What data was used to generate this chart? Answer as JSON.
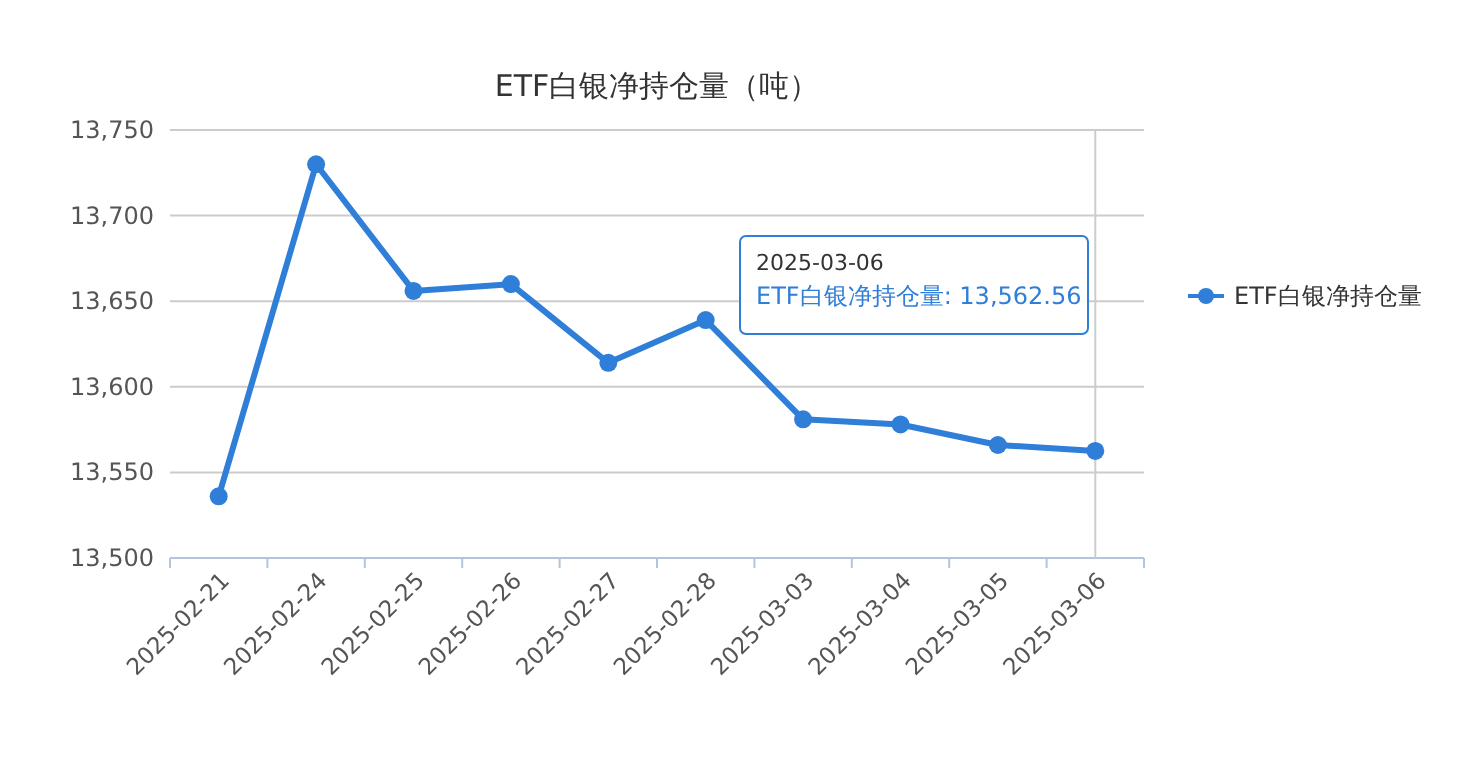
{
  "chart_data": {
    "type": "line",
    "title": "ETF白银净持仓量（吨）",
    "categories": [
      "2025-02-21",
      "2025-02-24",
      "2025-02-25",
      "2025-02-26",
      "2025-02-27",
      "2025-02-28",
      "2025-03-03",
      "2025-03-04",
      "2025-03-05",
      "2025-03-06"
    ],
    "series": [
      {
        "name": "ETF白银净持仓量",
        "color": "#2f7ed8",
        "values": [
          13536,
          13730,
          13656,
          13660,
          13614,
          13639,
          13581,
          13578,
          13566,
          13562.56
        ]
      }
    ],
    "ylim": [
      13500,
      13750
    ],
    "yticks": [
      {
        "value": 13500,
        "label": "13,500"
      },
      {
        "value": 13550,
        "label": "13,550"
      },
      {
        "value": 13600,
        "label": "13,600"
      },
      {
        "value": 13650,
        "label": "13,650"
      },
      {
        "value": 13700,
        "label": "13,700"
      },
      {
        "value": 13750,
        "label": "13,750"
      }
    ],
    "grid": "y",
    "legend": "right",
    "marker": "circle",
    "line_style": "solid",
    "ref_lines": [
      {
        "axis": "x",
        "value": "2025-03-06",
        "color": "#cccccc"
      }
    ],
    "annotations": [
      "2025-03-06\nETF白银净持仓量: 13,562.56"
    ]
  }
}
